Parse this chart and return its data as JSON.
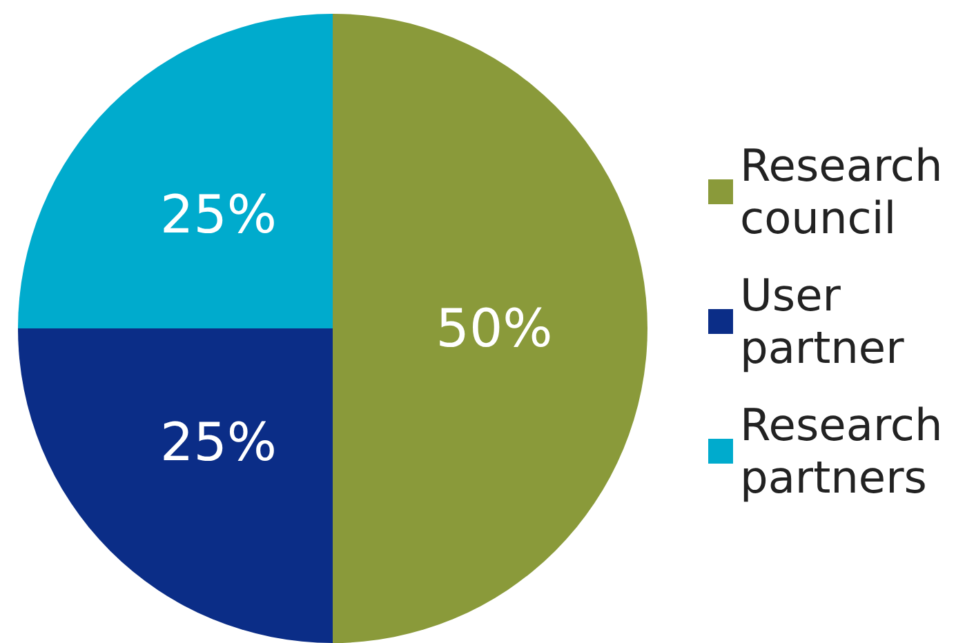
{
  "chart_data": {
    "type": "pie",
    "categories": [
      "Research council",
      "User partner",
      "Research partners"
    ],
    "values": [
      50,
      25,
      25
    ],
    "colors": [
      "#8a9a3a",
      "#0b2d87",
      "#00abcd"
    ],
    "value_labels": [
      "50%",
      "25%",
      "25%"
    ],
    "legend": "right"
  }
}
